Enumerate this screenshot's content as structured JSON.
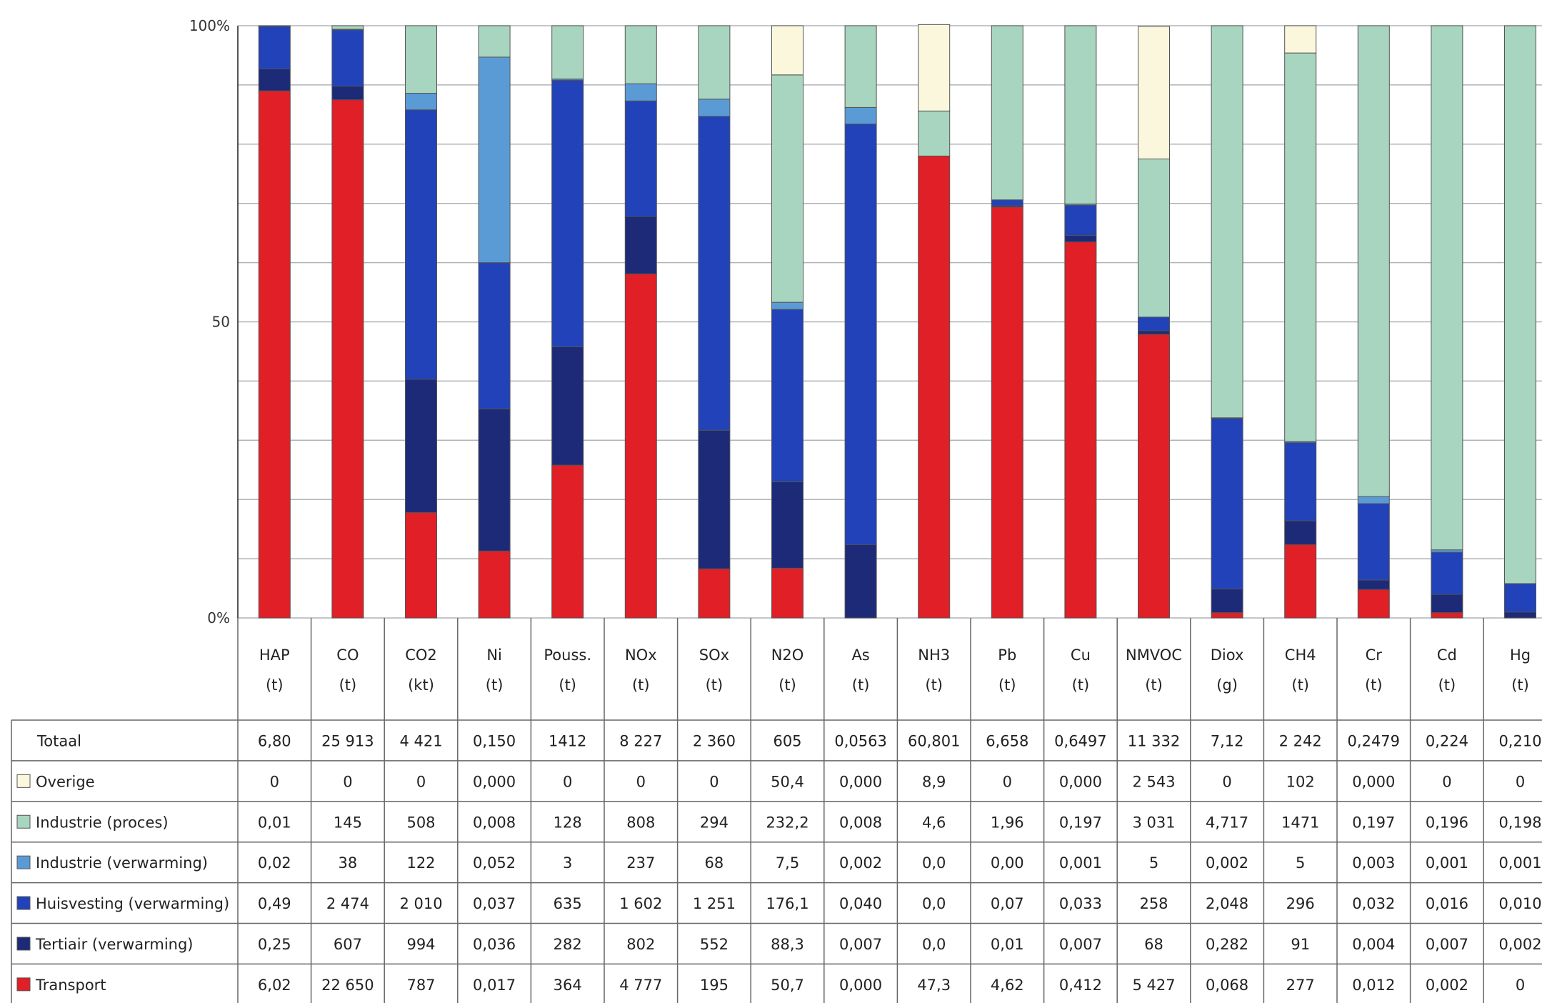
{
  "chart_data": {
    "type": "bar",
    "stacked": true,
    "normalized_percent": true,
    "ylim": [
      0,
      100
    ],
    "yticks": [
      "0%",
      "50",
      "100%"
    ],
    "grid": true,
    "categories": [
      "HAP",
      "CO",
      "CO2",
      "Ni",
      "Pouss.",
      "NOx",
      "SOx",
      "N2O",
      "As",
      "NH3",
      "Pb",
      "Cu",
      "NMVOC",
      "Diox",
      "CH4",
      "Cr",
      "Cd",
      "Hg"
    ],
    "units": [
      "(t)",
      "(t)",
      "(kt)",
      "(t)",
      "(t)",
      "(t)",
      "(t)",
      "(t)",
      "(t)",
      "(t)",
      "(t)",
      "(t)",
      "(t)",
      "(g)",
      "(t)",
      "(t)",
      "(t)",
      "(t)"
    ],
    "totals": {
      "label": "Totaal",
      "values": [
        "6,80",
        "25 913",
        "4 421",
        "0,150",
        "1412",
        "8 227",
        "2 360",
        "605",
        "0,0563",
        "60,801",
        "6,658",
        "0,6497",
        "11 332",
        "7,12",
        "2 242",
        "0,2479",
        "0,224",
        "0,210"
      ]
    },
    "series": [
      {
        "name": "Transport",
        "color": "#e01f26",
        "values": [
          89,
          87.5,
          17.8,
          11.3,
          25.8,
          58.1,
          8.3,
          8.4,
          0,
          78,
          69.4,
          63.5,
          47.9,
          0.9,
          12.4,
          4.8,
          0.9,
          0
        ],
        "cells": [
          "6,02",
          "22 650",
          "787",
          "0,017",
          "364",
          "4 777",
          "195",
          "50,7",
          "0,000",
          "47,3",
          "4,62",
          "0,412",
          "5 427",
          "0,068",
          "277",
          "0,012",
          "0,002",
          "0"
        ]
      },
      {
        "name": "Tertiair (verwarming)",
        "color": "#1c2a78",
        "values": [
          3.7,
          2.3,
          22.5,
          24,
          20,
          9.7,
          23.4,
          14.6,
          12.4,
          0,
          0.2,
          1.1,
          0.6,
          4,
          4,
          1.6,
          3.1,
          1
        ],
        "cells": [
          "0,25",
          "607",
          "994",
          "0,036",
          "282",
          "802",
          "552",
          "88,3",
          "0,007",
          "0,0",
          "0,01",
          "0,007",
          "68",
          "0,282",
          "91",
          "0,004",
          "0,007",
          "0,002"
        ]
      },
      {
        "name": "Huisvesting (verwarming)",
        "color": "#2142b8",
        "values": [
          7.2,
          9.5,
          45.5,
          24.7,
          45,
          19.5,
          53,
          29.1,
          71,
          0,
          1,
          5.1,
          2.3,
          28.8,
          13.2,
          12.9,
          7.1,
          4.8
        ],
        "cells": [
          "0,49",
          "2 474",
          "2 010",
          "0,037",
          "635",
          "1 602",
          "1 251",
          "176,1",
          "0,040",
          "0,0",
          "0,07",
          "0,033",
          "258",
          "2,048",
          "296",
          "0,032",
          "0,016",
          "0,010"
        ]
      },
      {
        "name": "Industrie (verwarming)",
        "color": "#5b9bd5",
        "values": [
          0.1,
          0.1,
          2.8,
          34.7,
          0.2,
          2.9,
          2.9,
          1.2,
          2.8,
          0,
          0,
          0.2,
          0,
          0.1,
          0.2,
          1.2,
          0.4,
          0
        ],
        "cells": [
          "0,02",
          "38",
          "122",
          "0,052",
          "3",
          "237",
          "68",
          "7,5",
          "0,002",
          "0,0",
          "0,00",
          "0,001",
          "5",
          "0,002",
          "5",
          "0,003",
          "0,001",
          "0,001"
        ]
      },
      {
        "name": "Industrie (proces)",
        "color": "#a8d5bf",
        "values": [
          0,
          0.6,
          11.4,
          5.3,
          9,
          9.8,
          12.4,
          38.4,
          13.8,
          7.6,
          29.4,
          30.1,
          26.7,
          66.2,
          65.6,
          79.5,
          88.5,
          94.2
        ],
        "cells": [
          "0,01",
          "145",
          "508",
          "0,008",
          "128",
          "808",
          "294",
          "232,2",
          "0,008",
          "4,6",
          "1,96",
          "0,197",
          "3 031",
          "4,717",
          "1471",
          "0,197",
          "0,196",
          "0,198"
        ]
      },
      {
        "name": "Overige",
        "color": "#fbf7dd",
        "values": [
          0,
          0,
          0,
          0,
          0,
          0,
          0,
          8.3,
          0,
          14.6,
          0,
          0,
          22.4,
          0,
          4.6,
          0,
          0,
          0
        ],
        "cells": [
          "0",
          "0",
          "0",
          "0,000",
          "0",
          "0",
          "0",
          "50,4",
          "0,000",
          "8,9",
          "0",
          "0,000",
          "2 543",
          "0",
          "102",
          "0,000",
          "0",
          "0"
        ]
      }
    ],
    "table_rows_order": [
      "Overige",
      "Industrie (proces)",
      "Industrie (verwarming)",
      "Huisvesting (verwarming)",
      "Tertiair (verwarming)",
      "Transport"
    ]
  }
}
